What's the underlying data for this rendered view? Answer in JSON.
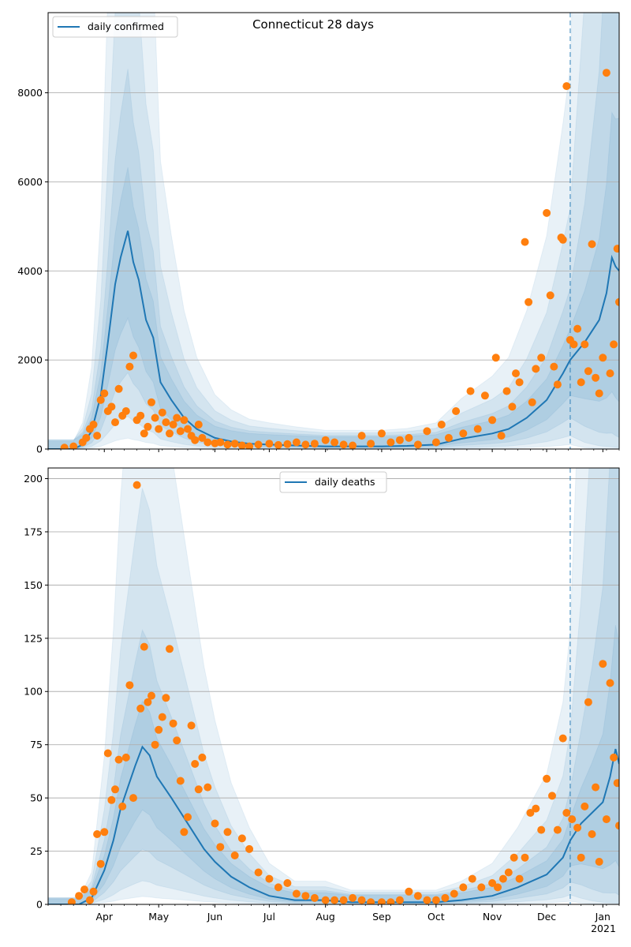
{
  "colors": {
    "line": "#1f77b4",
    "points": "#ff7f0e",
    "band": "#1f77b4",
    "grid": "#b0b0b0",
    "axes": "#000000"
  },
  "chart_data": [
    {
      "type": "line",
      "title": "Connecticut 28 days",
      "legend_position": "top-left",
      "grid": "horizontal",
      "xlabel": "",
      "ylabel": "",
      "x_range": [
        "2020-03-01",
        "2021-01-10"
      ],
      "ylim": [
        0,
        9800
      ],
      "yticks": [
        0,
        2000,
        4000,
        6000,
        8000
      ],
      "forecast_date": "2020-12-14",
      "series": [
        {
          "name": "daily confirmed",
          "kind": "line",
          "x": [
            "2020-03-01",
            "2020-03-15",
            "2020-03-20",
            "2020-03-25",
            "2020-03-30",
            "2020-04-03",
            "2020-04-07",
            "2020-04-10",
            "2020-04-14",
            "2020-04-17",
            "2020-04-20",
            "2020-04-24",
            "2020-04-28",
            "2020-05-02",
            "2020-05-08",
            "2020-05-15",
            "2020-05-22",
            "2020-06-01",
            "2020-06-10",
            "2020-06-20",
            "2020-07-01",
            "2020-07-15",
            "2020-08-01",
            "2020-08-15",
            "2020-09-01",
            "2020-09-15",
            "2020-10-01",
            "2020-10-15",
            "2020-11-01",
            "2020-11-10",
            "2020-11-20",
            "2020-12-01",
            "2020-12-10",
            "2020-12-14",
            "2020-12-22",
            "2020-12-30",
            "2021-01-03",
            "2021-01-06",
            "2021-01-08",
            "2021-01-10"
          ],
          "y": [
            0,
            0,
            100,
            400,
            1200,
            2400,
            3700,
            4300,
            4900,
            4200,
            3800,
            2900,
            2500,
            1500,
            1100,
            700,
            450,
            250,
            170,
            120,
            100,
            80,
            60,
            60,
            60,
            70,
            100,
            230,
            350,
            450,
            700,
            1100,
            1700,
            2000,
            2400,
            2900,
            3500,
            4300,
            4100,
            4000
          ]
        },
        {
          "name": "",
          "kind": "points",
          "x": [
            "2020-03-10",
            "2020-03-15",
            "2020-03-20",
            "2020-03-22",
            "2020-03-24",
            "2020-03-26",
            "2020-03-28",
            "2020-03-30",
            "2020-04-01",
            "2020-04-03",
            "2020-04-05",
            "2020-04-07",
            "2020-04-09",
            "2020-04-11",
            "2020-04-13",
            "2020-04-15",
            "2020-04-17",
            "2020-04-19",
            "2020-04-21",
            "2020-04-23",
            "2020-04-25",
            "2020-04-27",
            "2020-04-29",
            "2020-05-01",
            "2020-05-03",
            "2020-05-05",
            "2020-05-07",
            "2020-05-09",
            "2020-05-11",
            "2020-05-13",
            "2020-05-15",
            "2020-05-17",
            "2020-05-19",
            "2020-05-21",
            "2020-05-23",
            "2020-05-25",
            "2020-05-28",
            "2020-06-01",
            "2020-06-04",
            "2020-06-08",
            "2020-06-12",
            "2020-06-16",
            "2020-06-20",
            "2020-06-25",
            "2020-07-01",
            "2020-07-06",
            "2020-07-11",
            "2020-07-16",
            "2020-07-21",
            "2020-07-26",
            "2020-08-01",
            "2020-08-06",
            "2020-08-11",
            "2020-08-16",
            "2020-08-21",
            "2020-08-26",
            "2020-09-01",
            "2020-09-06",
            "2020-09-11",
            "2020-09-16",
            "2020-09-21",
            "2020-09-26",
            "2020-10-01",
            "2020-10-04",
            "2020-10-08",
            "2020-10-12",
            "2020-10-16",
            "2020-10-20",
            "2020-10-24",
            "2020-10-28",
            "2020-11-01",
            "2020-11-03",
            "2020-11-06",
            "2020-11-09",
            "2020-11-12",
            "2020-11-14",
            "2020-11-16",
            "2020-11-19",
            "2020-11-21",
            "2020-11-23",
            "2020-11-25",
            "2020-11-28",
            "2020-12-01",
            "2020-12-03",
            "2020-12-05",
            "2020-12-07",
            "2020-12-09",
            "2020-12-10",
            "2020-12-12",
            "2020-12-14",
            "2020-12-16",
            "2020-12-18",
            "2020-12-20",
            "2020-12-22",
            "2020-12-24",
            "2020-12-26",
            "2020-12-28",
            "2020-12-30",
            "2021-01-01",
            "2021-01-03",
            "2021-01-05",
            "2021-01-07",
            "2021-01-09",
            "2021-01-10"
          ],
          "y": [
            30,
            60,
            150,
            250,
            450,
            550,
            300,
            1100,
            1250,
            850,
            950,
            600,
            1350,
            750,
            850,
            1850,
            2100,
            650,
            750,
            350,
            500,
            1050,
            700,
            450,
            820,
            600,
            350,
            550,
            700,
            400,
            650,
            450,
            300,
            200,
            550,
            250,
            150,
            130,
            150,
            100,
            120,
            80,
            60,
            100,
            120,
            90,
            110,
            150,
            100,
            120,
            200,
            150,
            100,
            80,
            300,
            120,
            350,
            150,
            200,
            250,
            100,
            400,
            150,
            550,
            250,
            850,
            350,
            1300,
            450,
            1200,
            650,
            2050,
            300,
            1300,
            950,
            1700,
            1500,
            4650,
            3300,
            1050,
            1800,
            2050,
            5300,
            3450,
            1850,
            1450,
            4750,
            4700,
            8150,
            2450,
            2350,
            2700,
            1500,
            2350,
            1750,
            4600,
            1600,
            1250,
            2050,
            8450,
            1700,
            2350,
            4500,
            3300
          ]
        }
      ]
    },
    {
      "type": "line",
      "title": "",
      "legend_position": "top-center",
      "grid": "horizontal",
      "xlabel": "",
      "ylabel": "",
      "x_range": [
        "2020-03-01",
        "2021-01-10"
      ],
      "ylim": [
        0,
        205
      ],
      "yticks": [
        0,
        25,
        50,
        75,
        100,
        125,
        150,
        175,
        200
      ],
      "xtick_labels": [
        "Apr",
        "May",
        "Jun",
        "Jul",
        "Aug",
        "Sep",
        "Oct",
        "Nov",
        "Dec",
        "Jan"
      ],
      "xtick_dates": [
        "2020-04-01",
        "2020-05-01",
        "2020-06-01",
        "2020-07-01",
        "2020-08-01",
        "2020-09-01",
        "2020-10-01",
        "2020-11-01",
        "2020-12-01",
        "2021-01-01"
      ],
      "x_year_label": "2021",
      "forecast_date": "2020-12-14",
      "series": [
        {
          "name": "daily deaths",
          "kind": "line",
          "x": [
            "2020-03-01",
            "2020-03-18",
            "2020-03-25",
            "2020-04-01",
            "2020-04-06",
            "2020-04-10",
            "2020-04-14",
            "2020-04-18",
            "2020-04-22",
            "2020-04-26",
            "2020-04-30",
            "2020-05-04",
            "2020-05-08",
            "2020-05-14",
            "2020-05-20",
            "2020-05-26",
            "2020-06-01",
            "2020-06-10",
            "2020-06-20",
            "2020-07-01",
            "2020-07-15",
            "2020-08-01",
            "2020-08-15",
            "2020-09-01",
            "2020-09-15",
            "2020-10-01",
            "2020-10-15",
            "2020-11-01",
            "2020-11-15",
            "2020-12-01",
            "2020-12-10",
            "2020-12-14",
            "2020-12-20",
            "2020-12-26",
            "2021-01-01",
            "2021-01-05",
            "2021-01-08",
            "2021-01-10"
          ],
          "y": [
            0,
            0,
            3,
            16,
            30,
            45,
            55,
            65,
            74,
            70,
            60,
            55,
            50,
            42,
            34,
            26,
            20,
            13,
            8,
            4,
            2,
            2,
            1,
            1,
            1,
            1,
            2,
            4,
            8,
            14,
            22,
            30,
            38,
            43,
            48,
            60,
            73,
            66
          ]
        },
        {
          "name": "",
          "kind": "points",
          "x": [
            "2020-03-14",
            "2020-03-18",
            "2020-03-21",
            "2020-03-24",
            "2020-03-26",
            "2020-03-28",
            "2020-03-30",
            "2020-04-01",
            "2020-04-03",
            "2020-04-05",
            "2020-04-07",
            "2020-04-09",
            "2020-04-11",
            "2020-04-13",
            "2020-04-15",
            "2020-04-17",
            "2020-04-19",
            "2020-04-21",
            "2020-04-23",
            "2020-04-25",
            "2020-04-27",
            "2020-04-29",
            "2020-05-01",
            "2020-05-03",
            "2020-05-05",
            "2020-05-07",
            "2020-05-09",
            "2020-05-11",
            "2020-05-13",
            "2020-05-15",
            "2020-05-17",
            "2020-05-19",
            "2020-05-21",
            "2020-05-23",
            "2020-05-25",
            "2020-05-28",
            "2020-06-01",
            "2020-06-04",
            "2020-06-08",
            "2020-06-12",
            "2020-06-16",
            "2020-06-20",
            "2020-06-25",
            "2020-07-01",
            "2020-07-06",
            "2020-07-11",
            "2020-07-16",
            "2020-07-21",
            "2020-07-26",
            "2020-08-01",
            "2020-08-06",
            "2020-08-11",
            "2020-08-16",
            "2020-08-21",
            "2020-08-26",
            "2020-09-01",
            "2020-09-06",
            "2020-09-11",
            "2020-09-16",
            "2020-09-21",
            "2020-09-26",
            "2020-10-01",
            "2020-10-06",
            "2020-10-11",
            "2020-10-16",
            "2020-10-21",
            "2020-10-26",
            "2020-11-01",
            "2020-11-04",
            "2020-11-07",
            "2020-11-10",
            "2020-11-13",
            "2020-11-16",
            "2020-11-19",
            "2020-11-22",
            "2020-11-25",
            "2020-11-28",
            "2020-12-01",
            "2020-12-04",
            "2020-12-07",
            "2020-12-10",
            "2020-12-12",
            "2020-12-15",
            "2020-12-18",
            "2020-12-20",
            "2020-12-22",
            "2020-12-24",
            "2020-12-26",
            "2020-12-28",
            "2020-12-30",
            "2021-01-01",
            "2021-01-03",
            "2021-01-05",
            "2021-01-07",
            "2021-01-09",
            "2021-01-10"
          ],
          "y": [
            1,
            4,
            7,
            2,
            6,
            33,
            19,
            34,
            71,
            49,
            54,
            68,
            46,
            69,
            103,
            50,
            197,
            92,
            121,
            95,
            98,
            75,
            82,
            88,
            97,
            120,
            85,
            77,
            58,
            34,
            41,
            84,
            66,
            54,
            69,
            55,
            38,
            27,
            34,
            23,
            31,
            26,
            15,
            12,
            8,
            10,
            5,
            4,
            3,
            2,
            2,
            2,
            3,
            2,
            1,
            1,
            1,
            2,
            6,
            4,
            2,
            2,
            3,
            5,
            8,
            12,
            8,
            10,
            8,
            12,
            15,
            22,
            12,
            22,
            43,
            45,
            35,
            59,
            51,
            35,
            78,
            43,
            40,
            36,
            22,
            46,
            95,
            33,
            55,
            20,
            113,
            40,
            104,
            69,
            57,
            37
          ]
        }
      ]
    }
  ]
}
